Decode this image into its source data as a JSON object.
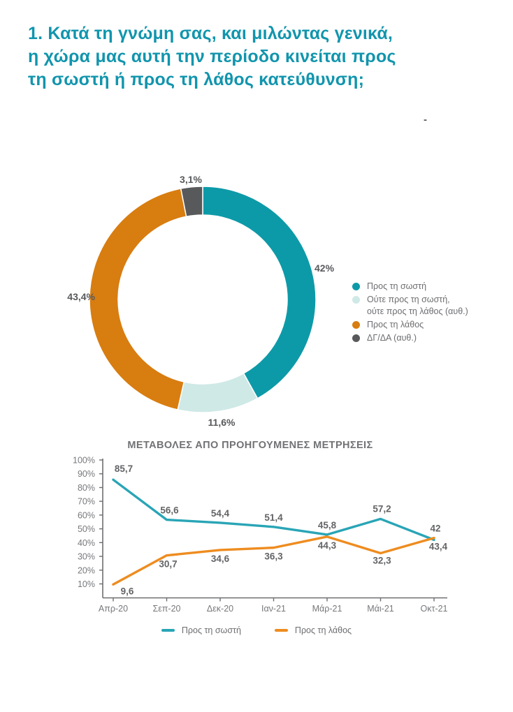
{
  "header": {
    "question_number_title": "1. Κατά τη γνώμη σας, και μιλώντας γενικά,\nη χώρα μας αυτή την περίοδο κινείται προς\nτη σωστή ή προς τη λάθος κατεύθυνση;",
    "top_right_mark": "-"
  },
  "colors": {
    "title_teal": "#1195ad",
    "donut_teal": "#0d9aa8",
    "donut_light_teal": "#cfe9e6",
    "donut_orange": "#d87d10",
    "donut_gray": "#58595b",
    "line_teal": "#29a5b6",
    "line_orange": "#ee8c1f",
    "text_gray": "#6d6e71",
    "axis_gray": "#77787b"
  },
  "chart_data": [
    {
      "type": "pie",
      "subtype": "donut",
      "legend_position": "right",
      "slices": [
        {
          "label": "Προς τη σωστή",
          "value": 42,
          "display": "42%",
          "color": "#0d9aa8"
        },
        {
          "label": "Ούτε προς τη σωστή, ούτε προς τη λάθος (αυθ.)",
          "value": 11.6,
          "display": "11,6%",
          "color": "#cfe9e6"
        },
        {
          "label": "Προς τη λάθος",
          "value": 43.4,
          "display": "43,4%",
          "color": "#d87d10"
        },
        {
          "label": "ΔΓ/ΔΑ (αυθ.)",
          "value": 3.1,
          "display": "3,1%",
          "color": "#58595b"
        }
      ],
      "legend": [
        {
          "label": "Προς τη σωστή",
          "color": "#0d9aa8"
        },
        {
          "label": "Ούτε προς τη σωστή,\nούτε προς τη λάθος (αυθ.)",
          "color": "#cfe9e6"
        },
        {
          "label": "Προς τη λάθος",
          "color": "#d87d10"
        },
        {
          "label": "ΔΓ/ΔΑ (αυθ.)",
          "color": "#58595b"
        }
      ]
    },
    {
      "type": "line",
      "title": "ΜΕΤΑΒΟΛΕΣ ΑΠΟ ΠΡΟΗΓΟΥΜΕΝΕΣ ΜΕΤΡΗΣΕΙΣ",
      "categories": [
        "Απρ-20",
        "Σεπ-20",
        "Δεκ-20",
        "Ιαν-21",
        "Μάρ-21",
        "Μάι-21",
        "Οκτ-21"
      ],
      "series": [
        {
          "name": "Προς τη σωστή",
          "color": "#29a5b6",
          "values": [
            85.7,
            56.6,
            54.4,
            51.4,
            45.8,
            57.2,
            42
          ],
          "labels": [
            "85,7",
            "56,6",
            "54,4",
            "51,4",
            "45,8",
            "57,2",
            "42"
          ]
        },
        {
          "name": "Προς τη λάθος",
          "color": "#ee8c1f",
          "values": [
            9.6,
            30.7,
            34.6,
            36.3,
            44.3,
            32.3,
            43.4
          ],
          "labels": [
            "9,6",
            "30,7",
            "34,6",
            "36,3",
            "44,3",
            "32,3",
            "43,4"
          ]
        }
      ],
      "ylim": [
        0,
        100
      ],
      "yticks": [
        "100%",
        "90%",
        "80%",
        "70%",
        "60%",
        "50%",
        "40%",
        "30%",
        "20%",
        "10%"
      ],
      "grid": false,
      "legend_position": "bottom"
    }
  ]
}
